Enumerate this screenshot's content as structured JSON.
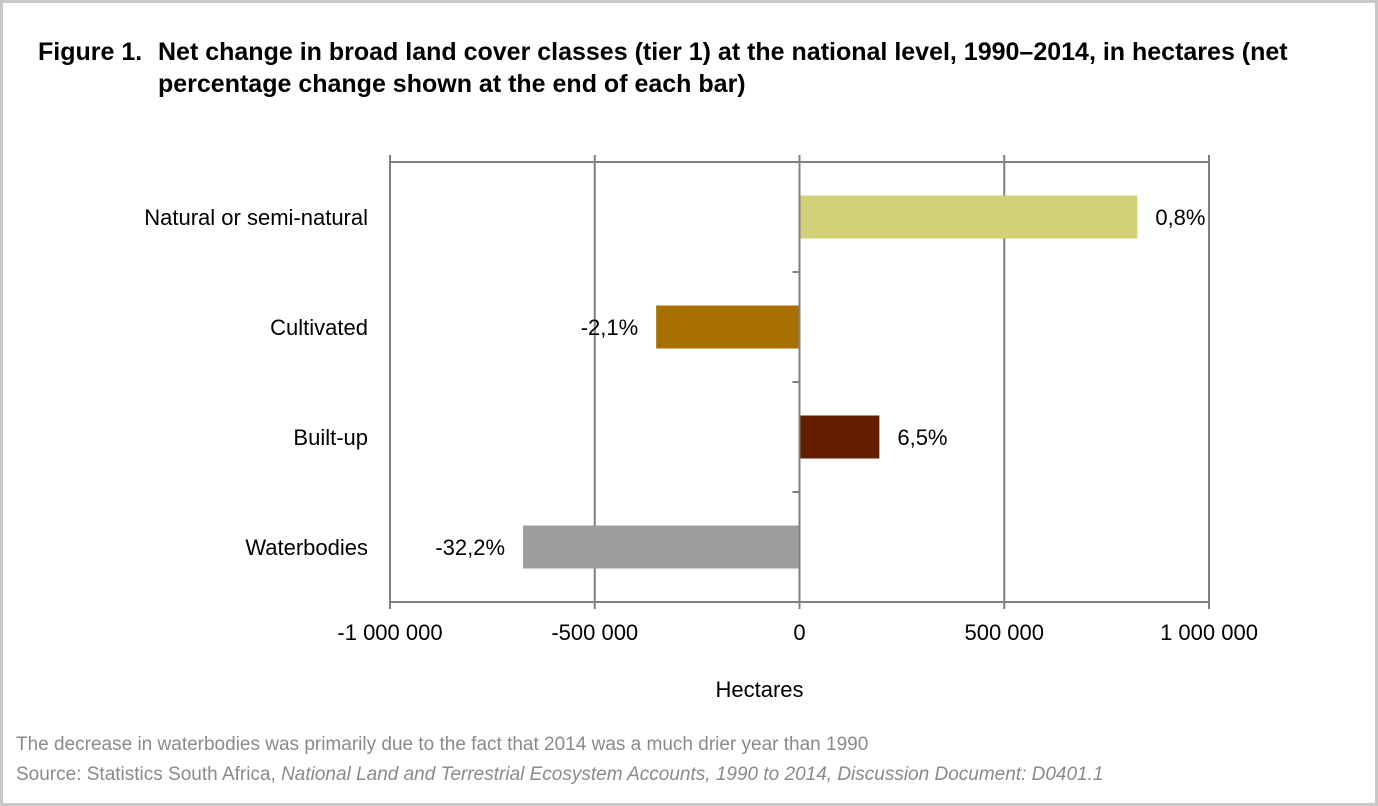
{
  "title": {
    "figure_label": "Figure 1.",
    "text": "Net change in broad land cover classes (tier 1) at the national level, 1990–2014, in hectares (net percentage change shown at the end of each bar)"
  },
  "chart_data": {
    "type": "bar",
    "orientation": "horizontal",
    "categories": [
      "Natural or semi-natural",
      "Cultivated",
      "Built-up",
      "Waterbodies"
    ],
    "values": [
      825000,
      -350000,
      195000,
      -675000
    ],
    "data_labels": [
      "0,8%",
      "-2,1%",
      "6,5%",
      "-32,2%"
    ],
    "colors": [
      "#d2d177",
      "#a87000",
      "#661e00",
      "#9d9d9d"
    ],
    "xlabel": "Hectares",
    "xlim": [
      -1000000,
      1000000
    ],
    "xticks": [
      -1000000,
      -500000,
      0,
      500000,
      1000000
    ],
    "xtick_labels": [
      "-1 000 000",
      "-500 000",
      "0",
      "500 000",
      "1 000 000"
    ],
    "grid": true,
    "axis_color": "#808080"
  },
  "notes": {
    "line1": "The decrease in waterbodies was primarily due to the fact that 2014 was a much drier year than 1990",
    "source_prefix": "Source: Statistics South Africa, ",
    "source_italic": "National Land and Terrestrial Ecosystem Accounts, 1990 to 2014, Discussion Document: D0401.1"
  }
}
